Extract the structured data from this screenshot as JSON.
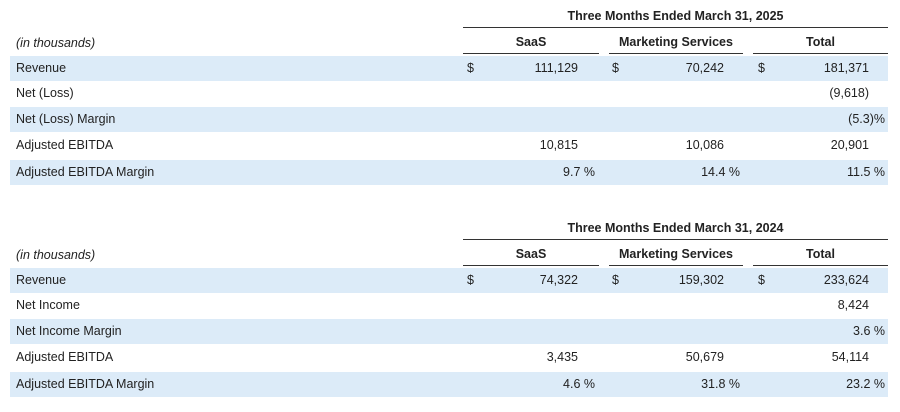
{
  "columns": {
    "saas": "SaaS",
    "marketing": "Marketing Services",
    "total": "Total"
  },
  "units_label": "(in thousands)",
  "currency_symbol": "$",
  "table_2025": {
    "period": "Three Months Ended March 31, 2025",
    "revenue": {
      "label": "Revenue",
      "saas": "111,129",
      "marketing": "70,242",
      "total": "181,371"
    },
    "net": {
      "label": "Net (Loss)",
      "total": "(9,618)"
    },
    "net_margin": {
      "label": "Net (Loss) Margin",
      "total": "(5.3)%"
    },
    "ebitda": {
      "label": "Adjusted EBITDA",
      "saas": "10,815",
      "marketing": "10,086",
      "total": "20,901"
    },
    "ebitda_margin": {
      "label": "Adjusted EBITDA Margin",
      "saas": "9.7 %",
      "marketing": "14.4 %",
      "total": "11.5 %"
    }
  },
  "table_2024": {
    "period": "Three Months Ended March 31, 2024",
    "revenue": {
      "label": "Revenue",
      "saas": "74,322",
      "marketing": "159,302",
      "total": "233,624"
    },
    "net": {
      "label": "Net Income",
      "total": "8,424"
    },
    "net_margin": {
      "label": "Net Income Margin",
      "total": "3.6 %"
    },
    "ebitda": {
      "label": "Adjusted EBITDA",
      "saas": "3,435",
      "marketing": "50,679",
      "total": "54,114"
    },
    "ebitda_margin": {
      "label": "Adjusted EBITDA Margin",
      "saas": "4.6 %",
      "marketing": "31.8 %",
      "total": "23.2 %"
    }
  }
}
